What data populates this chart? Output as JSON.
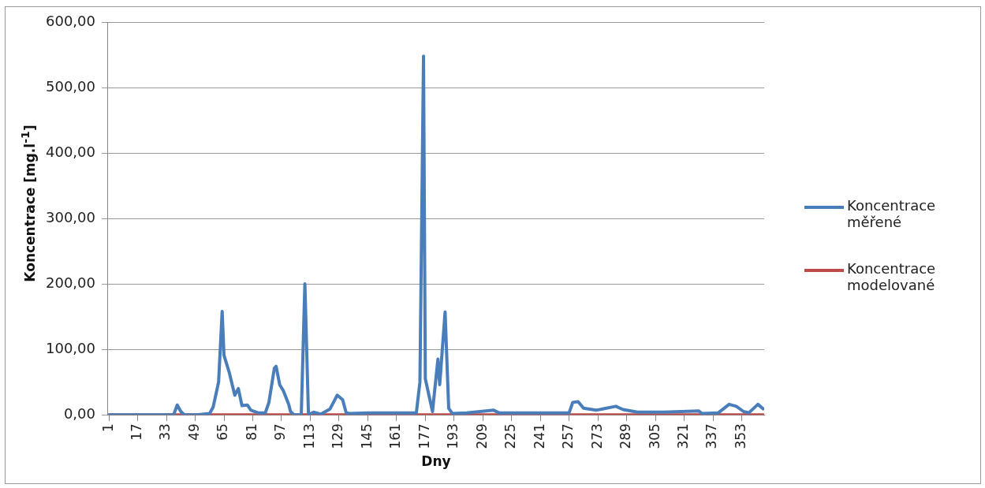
{
  "chart_data": {
    "type": "line",
    "xlabel": "Dny",
    "ylabel": "Koncentrace [mg.l$^{-1}$]",
    "xlim": [
      0.5,
      365.5
    ],
    "xticks": [
      1,
      17,
      33,
      49,
      65,
      81,
      97,
      113,
      129,
      145,
      161,
      177,
      193,
      209,
      225,
      241,
      257,
      273,
      289,
      305,
      321,
      337,
      353
    ],
    "ylim": [
      0,
      600
    ],
    "yticks": [
      {
        "value": 0,
        "label": "0,00"
      },
      {
        "value": 100,
        "label": "100,00"
      },
      {
        "value": 200,
        "label": "200,00"
      },
      {
        "value": 300,
        "label": "300,00"
      },
      {
        "value": 400,
        "label": "400,00"
      },
      {
        "value": 500,
        "label": "500,00"
      },
      {
        "value": 600,
        "label": "600,00"
      }
    ],
    "grid": "y",
    "legend": "right",
    "marker": "none",
    "line_style": "solid",
    "series": [
      {
        "name": "Koncentrace měřené",
        "color": "#4a7ebb",
        "x": [
          1,
          20,
          37,
          39,
          41,
          43,
          50,
          57,
          59,
          62,
          64,
          65,
          68,
          71,
          73,
          75,
          78,
          80,
          84,
          88,
          90,
          93,
          94,
          96,
          98,
          101,
          102,
          104,
          108,
          110,
          112,
          115,
          119,
          124,
          128,
          131,
          133,
          135,
          145,
          160,
          172,
          174,
          176,
          177,
          181,
          184,
          185,
          188,
          190,
          192,
          200,
          215,
          218,
          230,
          257,
          259,
          262,
          265,
          272,
          283,
          287,
          295,
          310,
          329,
          331,
          340,
          346,
          350,
          354,
          357,
          362,
          365
        ],
        "values": [
          0,
          0,
          0,
          15,
          5,
          0,
          0,
          2,
          12,
          50,
          158,
          91,
          64,
          30,
          40,
          14,
          15,
          7,
          3,
          3,
          19,
          71,
          74,
          46,
          37,
          16,
          5,
          0,
          0,
          200,
          0,
          4,
          1,
          9,
          30,
          23,
          3,
          2,
          3,
          3,
          3,
          50,
          548,
          55,
          5,
          85,
          46,
          157,
          10,
          2,
          3,
          7,
          3,
          3,
          3,
          19,
          20,
          10,
          7,
          13,
          8,
          4,
          4,
          6,
          2,
          3,
          16,
          13,
          5,
          3,
          16,
          9
        ]
      },
      {
        "name": "Koncentrace modelované",
        "color": "#be4b48",
        "x": [
          1,
          365
        ],
        "values": [
          0,
          0
        ]
      }
    ]
  }
}
